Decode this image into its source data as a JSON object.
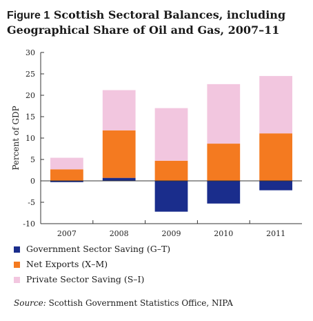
{
  "figure": {
    "label": "Figure 1",
    "title": "Scottish Sectoral Balances, including Geographical Share of Oil and Gas, 2007–11"
  },
  "source": {
    "label": "Source:",
    "text": "Scottish Government Statistics Office, NIPA"
  },
  "colors": {
    "government": "#1a2d8c",
    "net_exports": "#f47a20",
    "private": "#f2c6df",
    "axis": "#333333"
  },
  "chart_data": {
    "type": "bar",
    "stacked": true,
    "categories": [
      "2007",
      "2008",
      "2009",
      "2010",
      "2011"
    ],
    "ylabel": "Percent of GDP",
    "xlabel": "",
    "ylim": [
      -10,
      30
    ],
    "yticks": [
      -10,
      -5,
      0,
      5,
      10,
      15,
      20,
      25,
      30
    ],
    "grid": false,
    "legend_position": "bottom",
    "series": [
      {
        "name": "Government Sector Saving (G–T)",
        "color_key": "government",
        "values": [
          -0.3,
          0.7,
          -7.2,
          -5.3,
          -2.2
        ]
      },
      {
        "name": "Net Exports (X–M)",
        "color_key": "net_exports",
        "values": [
          2.7,
          11.1,
          4.7,
          8.7,
          11.1
        ]
      },
      {
        "name": "Private Sector Saving (S–I)",
        "color_key": "private",
        "values": [
          2.7,
          9.4,
          12.3,
          13.9,
          13.4
        ]
      }
    ]
  }
}
